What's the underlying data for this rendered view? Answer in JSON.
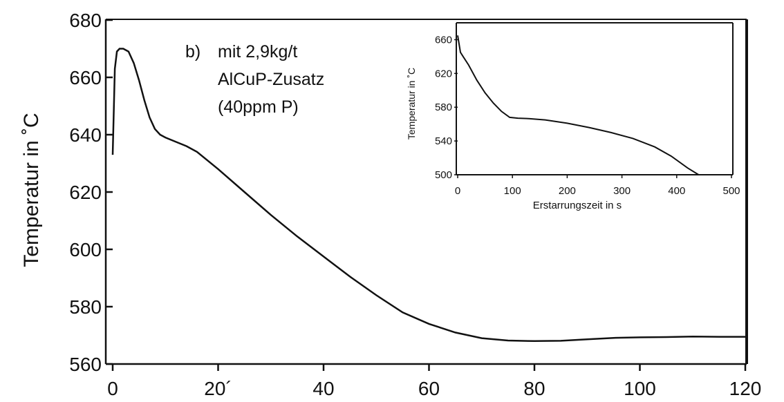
{
  "chart_data": [
    {
      "type": "line",
      "title": "",
      "xlabel": "",
      "ylabel": "Temperatur in ˚C",
      "xlim": [
        0,
        120
      ],
      "ylim": [
        560,
        680
      ],
      "xticks": [
        "0",
        "20´",
        "40",
        "60",
        "80",
        "100",
        "120"
      ],
      "yticks": [
        "560",
        "580",
        "600",
        "620",
        "640",
        "660",
        "680"
      ],
      "grid": false,
      "annotation": [
        "b)",
        "mit 2,9kg/t",
        "AlCuP-Zusatz",
        "(40ppm P)"
      ],
      "x": [
        0,
        0.4,
        0.8,
        1.3,
        2.0,
        3.0,
        4.0,
        5.0,
        6.0,
        7.0,
        8.0,
        9.0,
        10.0,
        12.0,
        14.0,
        16.0,
        20.0,
        25.0,
        30.0,
        35.0,
        40.0,
        45.0,
        50.0,
        55.0,
        60.0,
        65.0,
        70.0,
        75.0,
        80.0,
        85.0,
        90.0,
        95.0,
        100.0,
        105.0,
        110.0,
        115.0,
        120.0
      ],
      "y": [
        633,
        663,
        669,
        670,
        670,
        669,
        665,
        659,
        652,
        646,
        642,
        640,
        639,
        637.5,
        636,
        634,
        628,
        620,
        612,
        604.5,
        597.5,
        590.5,
        584,
        578,
        574,
        571,
        569,
        568.2,
        568,
        568.1,
        568.6,
        569.1,
        569.3,
        569.4,
        569.6,
        569.5,
        569.5
      ]
    },
    {
      "type": "line",
      "title": "",
      "xlabel": "Erstarrungszeit in s",
      "ylabel": "Temperatur in ˚C",
      "xlim": [
        0,
        500
      ],
      "ylim": [
        500,
        680
      ],
      "xticks": [
        "0",
        "100",
        "200",
        "300",
        "400",
        "500"
      ],
      "yticks": [
        "500",
        "540",
        "580",
        "620",
        "660"
      ],
      "grid": false,
      "x": [
        0,
        5,
        10,
        20,
        35,
        50,
        65,
        80,
        95,
        110,
        130,
        160,
        200,
        240,
        280,
        320,
        360,
        390,
        420,
        440
      ],
      "y": [
        665,
        645,
        640,
        630,
        612,
        597,
        585,
        575,
        568,
        567,
        566.5,
        565,
        561,
        556,
        550,
        543,
        533,
        522,
        508,
        500
      ]
    }
  ]
}
